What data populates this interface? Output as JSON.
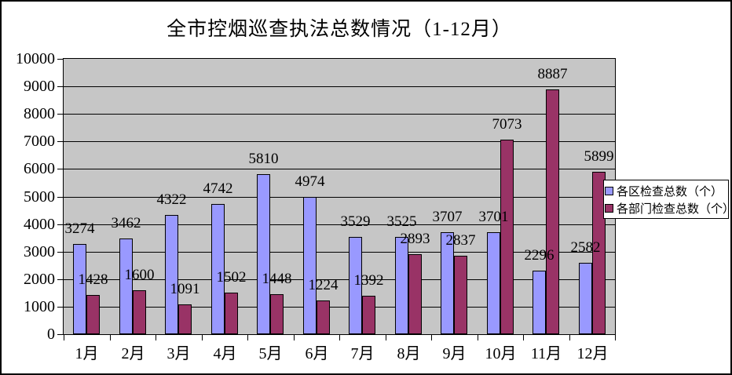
{
  "title": "全市控烟巡查执法总数情况（1-12月）",
  "chart_data": {
    "type": "bar",
    "title": "全市控烟巡查执法总数情况（1-12月）",
    "categories": [
      "1月",
      "2月",
      "3月",
      "4月",
      "5月",
      "6月",
      "7月",
      "8月",
      "9月",
      "10月",
      "11月",
      "12月"
    ],
    "series": [
      {
        "name": "各区检查总数（个）",
        "color": "#9999FF",
        "values": [
          3274,
          3462,
          4322,
          4742,
          5810,
          4974,
          3529,
          3525,
          3707,
          3701,
          2296,
          2582
        ]
      },
      {
        "name": "各部门检查总数（个）",
        "color": "#993366",
        "values": [
          1428,
          1600,
          1091,
          1502,
          1448,
          1224,
          1392,
          2893,
          2837,
          7073,
          8887,
          5899
        ]
      }
    ],
    "ylim": [
      0,
      10000
    ],
    "yticks": [
      0,
      1000,
      2000,
      3000,
      4000,
      5000,
      6000,
      7000,
      8000,
      9000,
      10000
    ],
    "grid": true,
    "data_labels": true,
    "legend_position": "right",
    "plot_background": "#C6C6C6",
    "xlabel": "",
    "ylabel": ""
  }
}
